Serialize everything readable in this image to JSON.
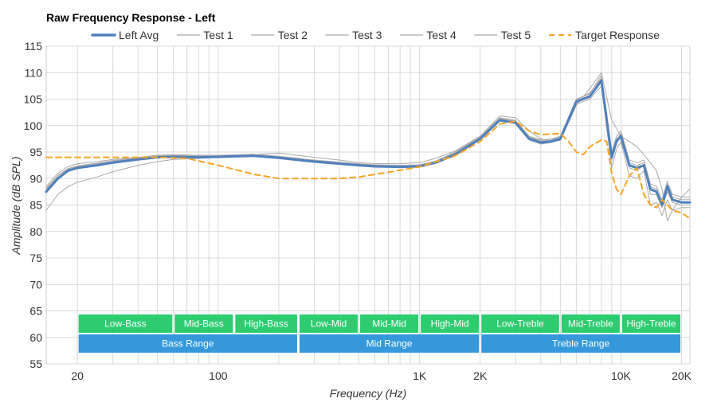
{
  "chart_data": {
    "type": "line",
    "title": "Raw Frequency Response - Left",
    "xlabel": "Frequency (Hz)",
    "ylabel": "Amplitude (dB SPL)",
    "x_scale": "log",
    "xlim": [
      14,
      22000
    ],
    "ylim": [
      55,
      115
    ],
    "x_ticks": [
      {
        "value": 20,
        "label": "20"
      },
      {
        "value": 100,
        "label": "100"
      },
      {
        "value": 1000,
        "label": "1K"
      },
      {
        "value": 2000,
        "label": "2K"
      },
      {
        "value": 10000,
        "label": "10K"
      },
      {
        "value": 20000,
        "label": "20K"
      }
    ],
    "y_ticks": [
      55,
      60,
      65,
      70,
      75,
      80,
      85,
      90,
      95,
      100,
      105,
      110,
      115
    ],
    "grid": true,
    "legend_position": "top",
    "series": [
      {
        "name": "Left Avg",
        "color": "#4f81bd",
        "style": "solid-thick",
        "x": [
          14,
          16,
          18,
          20,
          25,
          30,
          40,
          50,
          60,
          80,
          100,
          150,
          200,
          300,
          400,
          500,
          600,
          800,
          1000,
          1200,
          1500,
          2000,
          2500,
          3000,
          3500,
          4000,
          4500,
          5000,
          6000,
          7000,
          8000,
          9000,
          9500,
          10000,
          11000,
          12000,
          13000,
          14000,
          15000,
          16000,
          17000,
          18000,
          20000,
          22000
        ],
        "y": [
          87.5,
          90.0,
          91.5,
          92.0,
          92.5,
          93.0,
          93.6,
          94.0,
          94.1,
          94.0,
          94.1,
          94.3,
          93.9,
          93.2,
          92.8,
          92.5,
          92.3,
          92.2,
          92.3,
          93.0,
          94.5,
          97.5,
          101.0,
          100.5,
          97.5,
          96.8,
          97.0,
          97.5,
          104.5,
          105.5,
          108.5,
          94.0,
          97.0,
          98.0,
          92.5,
          92.0,
          92.5,
          88.0,
          87.5,
          85.0,
          88.5,
          86.0,
          85.5,
          85.5
        ]
      },
      {
        "name": "Test 1",
        "color": "#aaaaaa",
        "style": "solid-thin",
        "x": [
          14,
          16,
          18,
          20,
          25,
          30,
          40,
          50,
          60,
          80,
          100,
          150,
          200,
          300,
          400,
          500,
          600,
          800,
          1000,
          1200,
          1500,
          2000,
          2500,
          3000,
          3500,
          4000,
          4500,
          5000,
          6000,
          7000,
          8000,
          9000,
          9500,
          10000,
          11000,
          12000,
          13000,
          14000,
          15000,
          16000,
          17000,
          18000,
          20000,
          22000
        ],
        "y": [
          88.0,
          90.5,
          91.8,
          92.3,
          92.8,
          93.3,
          93.8,
          94.2,
          94.3,
          94.2,
          94.3,
          94.6,
          94.1,
          93.4,
          93.0,
          92.7,
          92.5,
          92.4,
          92.5,
          93.2,
          94.8,
          97.8,
          101.5,
          101.0,
          98.0,
          97.3,
          97.5,
          98.0,
          105.0,
          106.0,
          109.5,
          95.0,
          98.0,
          99.0,
          93.5,
          93.0,
          93.5,
          89.0,
          88.5,
          86.0,
          89.5,
          87.0,
          86.5,
          86.5
        ]
      },
      {
        "name": "Test 2",
        "color": "#aaaaaa",
        "style": "solid-thin",
        "x": [
          14,
          16,
          18,
          20,
          25,
          30,
          40,
          50,
          60,
          80,
          100,
          150,
          200,
          300,
          400,
          500,
          600,
          800,
          1000,
          1200,
          1500,
          2000,
          2500,
          3000,
          3500,
          4000,
          4500,
          5000,
          6000,
          7000,
          8000,
          9000,
          9500,
          10000,
          11000,
          12000,
          13000,
          14000,
          15000,
          16000,
          17000,
          18000,
          20000,
          22000
        ],
        "y": [
          84.0,
          87.0,
          88.5,
          89.3,
          90.3,
          91.3,
          92.5,
          93.2,
          93.6,
          93.8,
          94.0,
          94.5,
          94.8,
          94.0,
          93.5,
          93.0,
          92.8,
          92.8,
          93.0,
          93.8,
          95.2,
          98.0,
          101.8,
          101.5,
          99.0,
          97.5,
          97.0,
          97.2,
          103.8,
          107.0,
          110.0,
          101.0,
          99.5,
          98.0,
          97.0,
          96.0,
          94.5,
          93.0,
          91.5,
          88.0,
          82.0,
          84.0,
          86.5,
          88.0
        ]
      },
      {
        "name": "Test 3",
        "color": "#aaaaaa",
        "style": "solid-thin",
        "x": [
          14,
          16,
          18,
          20,
          25,
          30,
          40,
          50,
          60,
          80,
          100,
          150,
          200,
          300,
          400,
          500,
          600,
          800,
          1000,
          1200,
          1500,
          2000,
          2500,
          3000,
          3500,
          4000,
          4500,
          5000,
          6000,
          7000,
          8000,
          9000,
          9500,
          10000,
          11000,
          12000,
          13000,
          14000,
          15000,
          16000,
          17000,
          18000,
          20000,
          22000
        ],
        "y": [
          87.8,
          90.2,
          91.6,
          92.1,
          92.6,
          93.1,
          93.7,
          94.1,
          94.2,
          94.1,
          94.2,
          94.4,
          94.0,
          93.3,
          92.9,
          92.6,
          92.4,
          92.3,
          92.4,
          93.1,
          94.6,
          97.6,
          101.2,
          100.7,
          97.7,
          97.0,
          97.2,
          97.7,
          104.7,
          105.7,
          108.8,
          94.5,
          97.5,
          98.5,
          93.0,
          92.5,
          93.0,
          88.5,
          88.0,
          85.5,
          89.0,
          86.5,
          86.0,
          86.0
        ]
      },
      {
        "name": "Test 4",
        "color": "#aaaaaa",
        "style": "solid-thin",
        "x": [
          14,
          16,
          18,
          20,
          25,
          30,
          40,
          50,
          60,
          80,
          100,
          150,
          200,
          300,
          400,
          500,
          600,
          800,
          1000,
          1200,
          1500,
          2000,
          2500,
          3000,
          3500,
          4000,
          4500,
          5000,
          6000,
          7000,
          8000,
          9000,
          9500,
          10000,
          11000,
          12000,
          13000,
          14000,
          15000,
          16000,
          17000,
          18000,
          20000,
          22000
        ],
        "y": [
          88.5,
          91.0,
          92.3,
          92.8,
          93.2,
          93.6,
          94.0,
          94.4,
          94.5,
          94.4,
          94.4,
          94.6,
          94.2,
          93.5,
          93.1,
          92.8,
          92.6,
          92.5,
          92.6,
          93.3,
          95.0,
          98.0,
          101.3,
          100.8,
          97.3,
          96.5,
          96.8,
          97.3,
          104.0,
          105.0,
          107.5,
          92.0,
          95.5,
          97.0,
          90.5,
          90.0,
          91.5,
          85.0,
          85.5,
          83.0,
          86.0,
          84.0,
          84.5,
          84.5
        ]
      },
      {
        "name": "Test 5",
        "color": "#aaaaaa",
        "style": "solid-thin",
        "x": [
          14,
          16,
          18,
          20,
          25,
          30,
          40,
          50,
          60,
          80,
          100,
          150,
          200,
          300,
          400,
          500,
          600,
          800,
          1000,
          1200,
          1500,
          2000,
          2500,
          3000,
          3500,
          4000,
          4500,
          5000,
          6000,
          7000,
          8000,
          9000,
          9500,
          10000,
          11000,
          12000,
          13000,
          14000,
          15000,
          16000,
          17000,
          18000,
          20000,
          22000
        ],
        "y": [
          88.2,
          90.6,
          91.9,
          92.4,
          92.9,
          93.4,
          93.9,
          94.3,
          94.4,
          94.3,
          94.3,
          94.5,
          94.1,
          93.4,
          93.0,
          92.7,
          92.5,
          92.4,
          92.5,
          93.2,
          94.9,
          97.9,
          101.4,
          100.9,
          97.8,
          97.2,
          97.3,
          97.8,
          104.8,
          106.2,
          109.0,
          93.5,
          96.5,
          98.5,
          92.0,
          91.5,
          92.5,
          87.0,
          87.0,
          84.5,
          87.5,
          85.5,
          85.0,
          85.0
        ]
      },
      {
        "name": "Target Response",
        "color": "#f5a623",
        "style": "dashed",
        "x": [
          14,
          20,
          30,
          50,
          70,
          100,
          150,
          200,
          300,
          400,
          500,
          700,
          1000,
          1500,
          2000,
          2500,
          3000,
          3500,
          4000,
          5000,
          5500,
          6000,
          6500,
          7000,
          8000,
          8500,
          9000,
          9500,
          10000,
          11000,
          12000,
          13000,
          14000,
          15000,
          16000,
          18000,
          20000,
          22000
        ],
        "y": [
          94.0,
          94.0,
          94.0,
          94.0,
          93.8,
          92.5,
          90.8,
          90.0,
          90.0,
          90.0,
          90.3,
          91.2,
          92.2,
          94.3,
          97.0,
          100.3,
          100.8,
          99.0,
          98.3,
          98.5,
          97.0,
          95.0,
          94.5,
          96.0,
          97.3,
          97.0,
          91.0,
          88.0,
          87.0,
          90.5,
          92.0,
          87.0,
          85.0,
          84.5,
          86.0,
          84.0,
          83.5,
          82.5
        ]
      }
    ],
    "bands_row1": [
      {
        "label": "Low-Bass",
        "from": 20,
        "to": 60
      },
      {
        "label": "Mid-Bass",
        "from": 60,
        "to": 120
      },
      {
        "label": "High-Bass",
        "from": 120,
        "to": 250
      },
      {
        "label": "Low-Mid",
        "from": 250,
        "to": 500
      },
      {
        "label": "Mid-Mid",
        "from": 500,
        "to": 1000
      },
      {
        "label": "High-Mid",
        "from": 1000,
        "to": 2000
      },
      {
        "label": "Low-Treble",
        "from": 2000,
        "to": 5000
      },
      {
        "label": "Mid-Treble",
        "from": 5000,
        "to": 10000
      },
      {
        "label": "High-Treble",
        "from": 10000,
        "to": 20000
      }
    ],
    "bands_row2": [
      {
        "label": "Bass Range",
        "from": 20,
        "to": 250
      },
      {
        "label": "Mid Range",
        "from": 250,
        "to": 2000
      },
      {
        "label": "Treble Range",
        "from": 2000,
        "to": 20000
      }
    ],
    "band_colors": {
      "row1": "#2ecc71",
      "row2": "#3498db"
    }
  }
}
